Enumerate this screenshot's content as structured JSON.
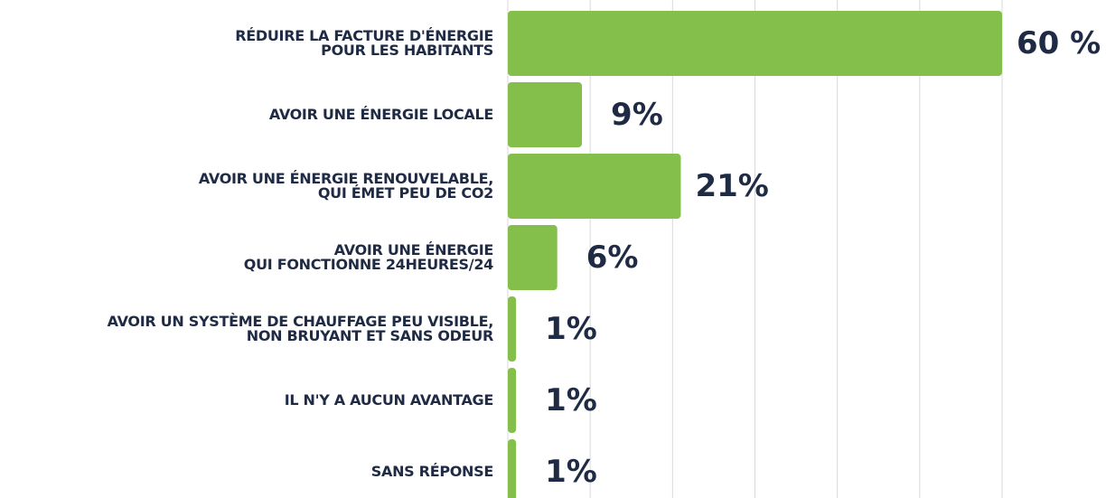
{
  "chart_data": {
    "type": "barh",
    "categories": [
      "RÉDUIRE LA FACTURE D'ÉNERGIE\nPOUR LES HABITANTS",
      "AVOIR UNE ÉNERGIE LOCALE",
      "AVOIR UNE ÉNERGIE RENOUVELABLE,\nQUI ÉMET PEU DE CO2",
      "AVOIR UNE ÉNERGIE\nQUI FONCTIONNE 24HEURES/24",
      "AVOIR UN SYSTÈME DE CHAUFFAGE PEU VISIBLE,\nNON BRUYANT ET SANS ODEUR",
      "IL N'Y A AUCUN AVANTAGE",
      "SANS RÉPONSE"
    ],
    "values": [
      60,
      9,
      21,
      6,
      1,
      1,
      1
    ],
    "value_labels": [
      "60 %",
      "9%",
      "21%",
      "6%",
      "1%",
      "1%",
      "1%"
    ],
    "color": "#84bf4b",
    "xlim": [
      0,
      60
    ],
    "xticks": [
      0,
      10,
      20,
      30,
      40,
      50,
      60
    ],
    "grid": true
  }
}
